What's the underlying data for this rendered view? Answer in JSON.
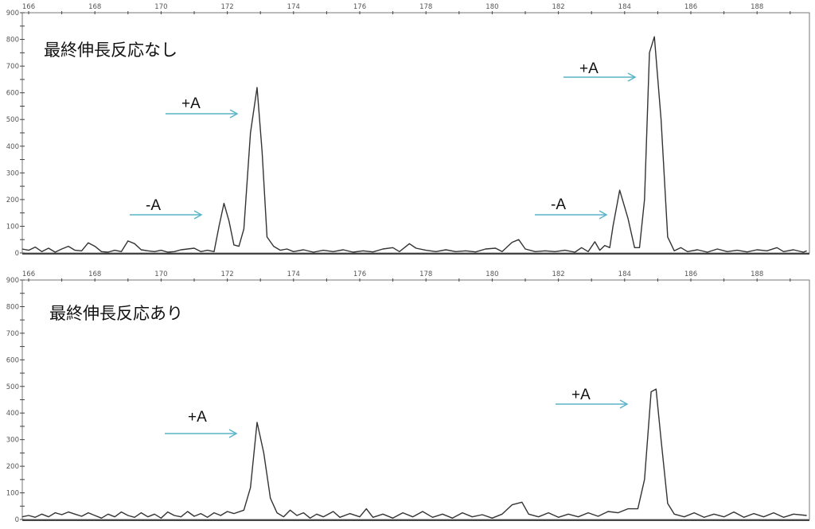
{
  "chart_data": [
    {
      "type": "line",
      "title": "最終伸長反応なし",
      "xlim": [
        165.8,
        189.5
      ],
      "ylim": [
        0,
        900
      ],
      "x_tick_labels": [
        "166",
        "168",
        "170",
        "172",
        "174",
        "176",
        "178",
        "180",
        "182",
        "184",
        "186",
        "188"
      ],
      "y_tick_labels": [
        "0",
        "100",
        "200",
        "300",
        "400",
        "500",
        "600",
        "700",
        "800",
        "900"
      ],
      "grid": false,
      "line_color": "#333333",
      "annotation_color": "#5ab4c8",
      "annotations": [
        {
          "text": "+A",
          "target_x": 172.9
        },
        {
          "text": "-A",
          "target_x": 171.9
        },
        {
          "text": "+A",
          "target_x": 184.9
        },
        {
          "text": "-A",
          "target_x": 183.85
        }
      ],
      "points": [
        [
          165.8,
          15
        ],
        [
          166.0,
          10
        ],
        [
          166.2,
          22
        ],
        [
          166.4,
          5
        ],
        [
          166.6,
          18
        ],
        [
          166.8,
          3
        ],
        [
          167.0,
          15
        ],
        [
          167.2,
          25
        ],
        [
          167.4,
          10
        ],
        [
          167.6,
          8
        ],
        [
          167.8,
          38
        ],
        [
          168.0,
          25
        ],
        [
          168.2,
          5
        ],
        [
          168.4,
          3
        ],
        [
          168.6,
          10
        ],
        [
          168.8,
          5
        ],
        [
          169.0,
          45
        ],
        [
          169.2,
          35
        ],
        [
          169.4,
          12
        ],
        [
          169.6,
          8
        ],
        [
          169.8,
          5
        ],
        [
          170.0,
          10
        ],
        [
          170.2,
          3
        ],
        [
          170.4,
          5
        ],
        [
          170.6,
          12
        ],
        [
          170.8,
          15
        ],
        [
          171.0,
          18
        ],
        [
          171.2,
          5
        ],
        [
          171.4,
          10
        ],
        [
          171.6,
          5
        ],
        [
          171.75,
          100
        ],
        [
          171.9,
          186
        ],
        [
          172.05,
          120
        ],
        [
          172.2,
          30
        ],
        [
          172.35,
          25
        ],
        [
          172.5,
          90
        ],
        [
          172.7,
          450
        ],
        [
          172.9,
          620
        ],
        [
          173.05,
          380
        ],
        [
          173.2,
          60
        ],
        [
          173.4,
          25
        ],
        [
          173.6,
          10
        ],
        [
          173.8,
          15
        ],
        [
          174.0,
          5
        ],
        [
          174.3,
          12
        ],
        [
          174.6,
          3
        ],
        [
          174.9,
          10
        ],
        [
          175.2,
          5
        ],
        [
          175.5,
          12
        ],
        [
          175.8,
          3
        ],
        [
          176.1,
          8
        ],
        [
          176.4,
          4
        ],
        [
          176.7,
          15
        ],
        [
          177.0,
          20
        ],
        [
          177.2,
          5
        ],
        [
          177.5,
          35
        ],
        [
          177.7,
          18
        ],
        [
          178.0,
          10
        ],
        [
          178.3,
          5
        ],
        [
          178.6,
          12
        ],
        [
          178.9,
          5
        ],
        [
          179.2,
          8
        ],
        [
          179.5,
          4
        ],
        [
          179.8,
          15
        ],
        [
          180.1,
          18
        ],
        [
          180.3,
          5
        ],
        [
          180.6,
          40
        ],
        [
          180.8,
          50
        ],
        [
          181.0,
          15
        ],
        [
          181.3,
          5
        ],
        [
          181.6,
          8
        ],
        [
          181.9,
          5
        ],
        [
          182.2,
          10
        ],
        [
          182.5,
          3
        ],
        [
          182.7,
          20
        ],
        [
          182.9,
          5
        ],
        [
          183.1,
          42
        ],
        [
          183.25,
          10
        ],
        [
          183.4,
          28
        ],
        [
          183.55,
          20
        ],
        [
          183.65,
          100
        ],
        [
          183.85,
          235
        ],
        [
          184.1,
          130
        ],
        [
          184.3,
          20
        ],
        [
          184.45,
          20
        ],
        [
          184.6,
          200
        ],
        [
          184.75,
          750
        ],
        [
          184.9,
          810
        ],
        [
          185.1,
          500
        ],
        [
          185.3,
          60
        ],
        [
          185.5,
          8
        ],
        [
          185.7,
          20
        ],
        [
          185.9,
          5
        ],
        [
          186.2,
          12
        ],
        [
          186.5,
          3
        ],
        [
          186.8,
          15
        ],
        [
          187.1,
          5
        ],
        [
          187.4,
          10
        ],
        [
          187.7,
          4
        ],
        [
          188.0,
          12
        ],
        [
          188.3,
          8
        ],
        [
          188.6,
          20
        ],
        [
          188.8,
          5
        ],
        [
          189.1,
          12
        ],
        [
          189.4,
          3
        ],
        [
          189.5,
          8
        ]
      ]
    },
    {
      "type": "line",
      "title": "最終伸長反応あり",
      "xlim": [
        165.8,
        189.5
      ],
      "ylim": [
        0,
        900
      ],
      "x_tick_labels": [
        "166",
        "168",
        "170",
        "172",
        "174",
        "176",
        "178",
        "180",
        "182",
        "184",
        "186",
        "188"
      ],
      "y_tick_labels": [
        "0",
        "100",
        "200",
        "300",
        "400",
        "500",
        "600",
        "700",
        "800",
        "900"
      ],
      "grid": false,
      "line_color": "#333333",
      "annotation_color": "#5ab4c8",
      "annotations": [
        {
          "text": "+A",
          "target_x": 172.9
        },
        {
          "text": "+A",
          "target_x": 184.9
        }
      ],
      "points": [
        [
          165.8,
          10
        ],
        [
          166.0,
          15
        ],
        [
          166.2,
          8
        ],
        [
          166.4,
          20
        ],
        [
          166.6,
          10
        ],
        [
          166.8,
          25
        ],
        [
          167.0,
          18
        ],
        [
          167.2,
          28
        ],
        [
          167.4,
          20
        ],
        [
          167.6,
          12
        ],
        [
          167.8,
          25
        ],
        [
          168.0,
          15
        ],
        [
          168.2,
          5
        ],
        [
          168.4,
          20
        ],
        [
          168.6,
          10
        ],
        [
          168.8,
          28
        ],
        [
          169.0,
          15
        ],
        [
          169.2,
          8
        ],
        [
          169.4,
          25
        ],
        [
          169.6,
          10
        ],
        [
          169.8,
          20
        ],
        [
          170.0,
          5
        ],
        [
          170.2,
          28
        ],
        [
          170.4,
          15
        ],
        [
          170.6,
          10
        ],
        [
          170.8,
          30
        ],
        [
          171.0,
          12
        ],
        [
          171.2,
          22
        ],
        [
          171.4,
          8
        ],
        [
          171.6,
          25
        ],
        [
          171.8,
          15
        ],
        [
          172.0,
          30
        ],
        [
          172.2,
          22
        ],
        [
          172.5,
          35
        ],
        [
          172.7,
          120
        ],
        [
          172.9,
          365
        ],
        [
          173.1,
          250
        ],
        [
          173.3,
          80
        ],
        [
          173.5,
          25
        ],
        [
          173.7,
          10
        ],
        [
          173.9,
          35
        ],
        [
          174.1,
          15
        ],
        [
          174.3,
          25
        ],
        [
          174.5,
          5
        ],
        [
          174.7,
          20
        ],
        [
          174.9,
          10
        ],
        [
          175.2,
          30
        ],
        [
          175.4,
          8
        ],
        [
          175.7,
          22
        ],
        [
          176.0,
          10
        ],
        [
          176.2,
          40
        ],
        [
          176.4,
          8
        ],
        [
          176.7,
          20
        ],
        [
          177.0,
          5
        ],
        [
          177.3,
          25
        ],
        [
          177.6,
          10
        ],
        [
          177.9,
          30
        ],
        [
          178.2,
          8
        ],
        [
          178.5,
          20
        ],
        [
          178.8,
          5
        ],
        [
          179.1,
          25
        ],
        [
          179.4,
          10
        ],
        [
          179.7,
          18
        ],
        [
          180.0,
          5
        ],
        [
          180.3,
          20
        ],
        [
          180.6,
          55
        ],
        [
          180.9,
          65
        ],
        [
          181.1,
          20
        ],
        [
          181.4,
          10
        ],
        [
          181.7,
          25
        ],
        [
          182.0,
          8
        ],
        [
          182.3,
          20
        ],
        [
          182.6,
          10
        ],
        [
          182.9,
          25
        ],
        [
          183.2,
          12
        ],
        [
          183.5,
          30
        ],
        [
          183.8,
          25
        ],
        [
          184.1,
          40
        ],
        [
          184.4,
          40
        ],
        [
          184.6,
          150
        ],
        [
          184.8,
          480
        ],
        [
          184.95,
          490
        ],
        [
          185.1,
          300
        ],
        [
          185.3,
          60
        ],
        [
          185.5,
          20
        ],
        [
          185.8,
          10
        ],
        [
          186.1,
          25
        ],
        [
          186.4,
          8
        ],
        [
          186.7,
          20
        ],
        [
          187.0,
          10
        ],
        [
          187.3,
          28
        ],
        [
          187.6,
          8
        ],
        [
          187.9,
          22
        ],
        [
          188.2,
          10
        ],
        [
          188.5,
          25
        ],
        [
          188.8,
          8
        ],
        [
          189.1,
          20
        ],
        [
          189.5,
          15
        ]
      ]
    }
  ]
}
